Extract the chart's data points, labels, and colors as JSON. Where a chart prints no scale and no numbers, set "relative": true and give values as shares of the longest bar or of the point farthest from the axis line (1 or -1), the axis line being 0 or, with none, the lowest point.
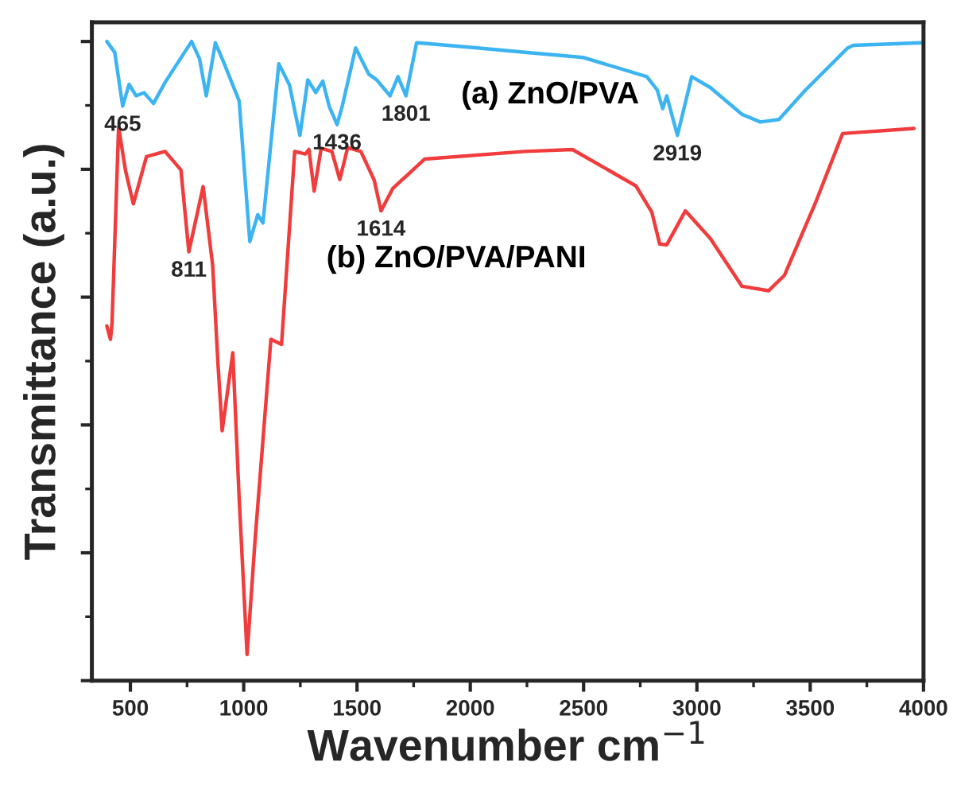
{
  "chart_data": {
    "type": "line",
    "relative": true,
    "xlabel": "Wavenumber cm$^{−1}$",
    "ylabel": "Transmittance (a.u.)",
    "xlim": [
      330,
      4000
    ],
    "xticks": [
      500,
      1000,
      1500,
      2000,
      2500,
      3000,
      3500,
      4000
    ],
    "tick_labels": "x",
    "grid": false,
    "legend": false,
    "marker": "none",
    "line_style": "solid",
    "series": [
      {
        "name": "(a) ZnO/PVA",
        "color": "#3db4f2",
        "x": [
          396,
          431,
          466,
          494,
          525,
          560,
          602,
          653,
          770,
          805,
          835,
          875,
          910,
          980,
          1027,
          1062,
          1085,
          1155,
          1202,
          1248,
          1283,
          1318,
          1349,
          1377,
          1412,
          1435,
          1494,
          1552,
          1587,
          1646,
          1681,
          1716,
          1763,
          1798,
          2031,
          2241,
          2498,
          2779,
          2825,
          2849,
          2867,
          2914,
          2977,
          3059,
          3199,
          3280,
          3362,
          3479,
          3666,
          3690,
          3993
        ],
        "values": [
          1.0,
          0.983,
          0.899,
          0.933,
          0.915,
          0.92,
          0.903,
          0.936,
          1.0,
          0.973,
          0.915,
          0.998,
          0.969,
          0.907,
          0.687,
          0.729,
          0.716,
          0.965,
          0.932,
          0.853,
          0.94,
          0.92,
          0.938,
          0.899,
          0.87,
          0.899,
          0.99,
          0.949,
          0.94,
          0.915,
          0.945,
          0.915,
          0.998,
          0.997,
          0.99,
          0.983,
          0.975,
          0.945,
          0.924,
          0.895,
          0.915,
          0.853,
          0.945,
          0.928,
          0.886,
          0.874,
          0.878,
          0.924,
          0.99,
          0.994,
          0.998
        ]
      },
      {
        "name": "(b) ZnO/PVA/PANI",
        "color": "#f03c3c",
        "x": [
          396,
          412,
          419,
          448,
          478,
          513,
          571,
          653,
          723,
          758,
          821,
          863,
          887,
          905,
          952,
          980,
          1015,
          1050,
          1120,
          1167,
          1225,
          1272,
          1288,
          1311,
          1342,
          1389,
          1424,
          1459,
          1517,
          1576,
          1606,
          1658,
          1798,
          2241,
          2451,
          2731,
          2801,
          2836,
          2867,
          2949,
          3059,
          3199,
          3316,
          3386,
          3526,
          3643,
          3958
        ],
        "values": [
          0.555,
          0.534,
          0.559,
          0.866,
          0.799,
          0.746,
          0.82,
          0.828,
          0.799,
          0.671,
          0.773,
          0.65,
          0.493,
          0.391,
          0.513,
          0.285,
          0.041,
          0.219,
          0.534,
          0.526,
          0.828,
          0.824,
          0.831,
          0.766,
          0.833,
          0.828,
          0.784,
          0.834,
          0.828,
          0.783,
          0.735,
          0.77,
          0.816,
          0.828,
          0.831,
          0.774,
          0.733,
          0.683,
          0.682,
          0.735,
          0.692,
          0.617,
          0.61,
          0.634,
          0.75,
          0.856,
          0.864
        ]
      }
    ],
    "annotations": [
      {
        "text": "465",
        "x": 466,
        "y": 0.899
      },
      {
        "text": "1436",
        "x": 1412,
        "y": 0.87
      },
      {
        "text": "1801",
        "x": 1716,
        "y": 0.915
      },
      {
        "text": "2919",
        "x": 2914,
        "y": 0.853
      },
      {
        "text": "811",
        "x": 758,
        "y": 0.671
      },
      {
        "text": "1614",
        "x": 1606,
        "y": 0.735
      }
    ]
  }
}
